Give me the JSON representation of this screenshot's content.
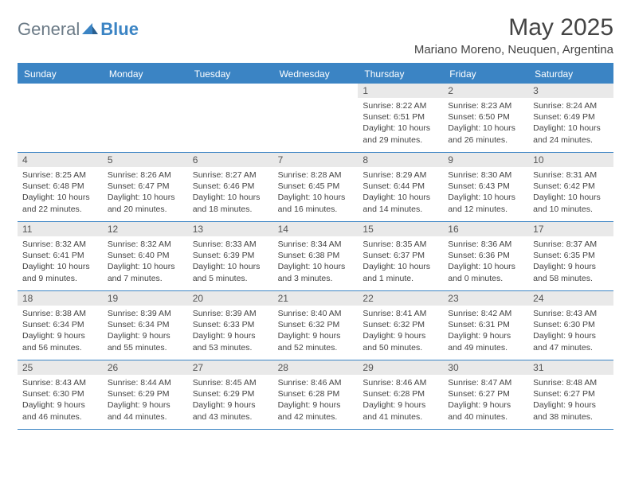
{
  "logo": {
    "general": "General",
    "blue": "Blue"
  },
  "title": "May 2025",
  "location": "Mariano Moreno, Neuquen, Argentina",
  "colors": {
    "accent": "#3b84c4",
    "daynum_bg": "#e9e9e9",
    "text": "#444444",
    "logo_gray": "#6b7a86"
  },
  "day_headers": [
    "Sunday",
    "Monday",
    "Tuesday",
    "Wednesday",
    "Thursday",
    "Friday",
    "Saturday"
  ],
  "weeks": [
    [
      null,
      null,
      null,
      null,
      {
        "n": "1",
        "sr": "8:22 AM",
        "ss": "6:51 PM",
        "dl": "10 hours and 29 minutes."
      },
      {
        "n": "2",
        "sr": "8:23 AM",
        "ss": "6:50 PM",
        "dl": "10 hours and 26 minutes."
      },
      {
        "n": "3",
        "sr": "8:24 AM",
        "ss": "6:49 PM",
        "dl": "10 hours and 24 minutes."
      }
    ],
    [
      {
        "n": "4",
        "sr": "8:25 AM",
        "ss": "6:48 PM",
        "dl": "10 hours and 22 minutes."
      },
      {
        "n": "5",
        "sr": "8:26 AM",
        "ss": "6:47 PM",
        "dl": "10 hours and 20 minutes."
      },
      {
        "n": "6",
        "sr": "8:27 AM",
        "ss": "6:46 PM",
        "dl": "10 hours and 18 minutes."
      },
      {
        "n": "7",
        "sr": "8:28 AM",
        "ss": "6:45 PM",
        "dl": "10 hours and 16 minutes."
      },
      {
        "n": "8",
        "sr": "8:29 AM",
        "ss": "6:44 PM",
        "dl": "10 hours and 14 minutes."
      },
      {
        "n": "9",
        "sr": "8:30 AM",
        "ss": "6:43 PM",
        "dl": "10 hours and 12 minutes."
      },
      {
        "n": "10",
        "sr": "8:31 AM",
        "ss": "6:42 PM",
        "dl": "10 hours and 10 minutes."
      }
    ],
    [
      {
        "n": "11",
        "sr": "8:32 AM",
        "ss": "6:41 PM",
        "dl": "10 hours and 9 minutes."
      },
      {
        "n": "12",
        "sr": "8:32 AM",
        "ss": "6:40 PM",
        "dl": "10 hours and 7 minutes."
      },
      {
        "n": "13",
        "sr": "8:33 AM",
        "ss": "6:39 PM",
        "dl": "10 hours and 5 minutes."
      },
      {
        "n": "14",
        "sr": "8:34 AM",
        "ss": "6:38 PM",
        "dl": "10 hours and 3 minutes."
      },
      {
        "n": "15",
        "sr": "8:35 AM",
        "ss": "6:37 PM",
        "dl": "10 hours and 1 minute."
      },
      {
        "n": "16",
        "sr": "8:36 AM",
        "ss": "6:36 PM",
        "dl": "10 hours and 0 minutes."
      },
      {
        "n": "17",
        "sr": "8:37 AM",
        "ss": "6:35 PM",
        "dl": "9 hours and 58 minutes."
      }
    ],
    [
      {
        "n": "18",
        "sr": "8:38 AM",
        "ss": "6:34 PM",
        "dl": "9 hours and 56 minutes."
      },
      {
        "n": "19",
        "sr": "8:39 AM",
        "ss": "6:34 PM",
        "dl": "9 hours and 55 minutes."
      },
      {
        "n": "20",
        "sr": "8:39 AM",
        "ss": "6:33 PM",
        "dl": "9 hours and 53 minutes."
      },
      {
        "n": "21",
        "sr": "8:40 AM",
        "ss": "6:32 PM",
        "dl": "9 hours and 52 minutes."
      },
      {
        "n": "22",
        "sr": "8:41 AM",
        "ss": "6:32 PM",
        "dl": "9 hours and 50 minutes."
      },
      {
        "n": "23",
        "sr": "8:42 AM",
        "ss": "6:31 PM",
        "dl": "9 hours and 49 minutes."
      },
      {
        "n": "24",
        "sr": "8:43 AM",
        "ss": "6:30 PM",
        "dl": "9 hours and 47 minutes."
      }
    ],
    [
      {
        "n": "25",
        "sr": "8:43 AM",
        "ss": "6:30 PM",
        "dl": "9 hours and 46 minutes."
      },
      {
        "n": "26",
        "sr": "8:44 AM",
        "ss": "6:29 PM",
        "dl": "9 hours and 44 minutes."
      },
      {
        "n": "27",
        "sr": "8:45 AM",
        "ss": "6:29 PM",
        "dl": "9 hours and 43 minutes."
      },
      {
        "n": "28",
        "sr": "8:46 AM",
        "ss": "6:28 PM",
        "dl": "9 hours and 42 minutes."
      },
      {
        "n": "29",
        "sr": "8:46 AM",
        "ss": "6:28 PM",
        "dl": "9 hours and 41 minutes."
      },
      {
        "n": "30",
        "sr": "8:47 AM",
        "ss": "6:27 PM",
        "dl": "9 hours and 40 minutes."
      },
      {
        "n": "31",
        "sr": "8:48 AM",
        "ss": "6:27 PM",
        "dl": "9 hours and 38 minutes."
      }
    ]
  ],
  "labels": {
    "sunrise": "Sunrise: ",
    "sunset": "Sunset: ",
    "daylight": "Daylight: "
  }
}
